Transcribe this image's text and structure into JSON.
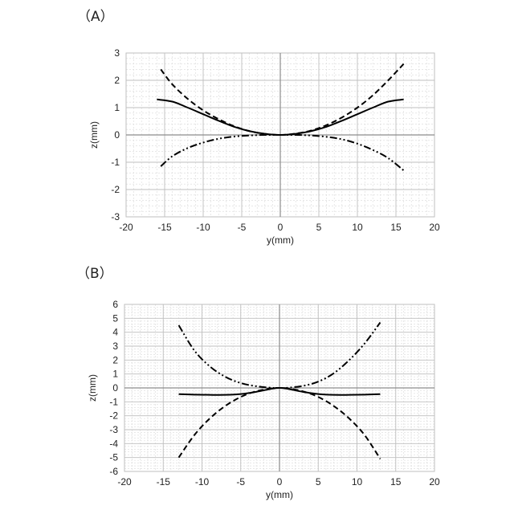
{
  "chart_data": [
    {
      "panel_label": "（A）",
      "type": "line",
      "xlabel": "y(mm)",
      "ylabel": "z(mm)",
      "xlim": [
        -20,
        20
      ],
      "ylim": [
        -3,
        3
      ],
      "xticks": [
        -20,
        -15,
        -10,
        -5,
        0,
        5,
        10,
        15,
        20
      ],
      "yticks": [
        -3,
        -2,
        -1,
        0,
        1,
        2,
        3
      ],
      "grid": "major and minor",
      "series": [
        {
          "style": "solid",
          "x": [
            -16,
            -14,
            -12,
            -10,
            -8,
            -6,
            -4,
            -2,
            0,
            2,
            4,
            6,
            8,
            10,
            12,
            14,
            16
          ],
          "y": [
            1.3,
            1.22,
            1.0,
            0.76,
            0.52,
            0.3,
            0.14,
            0.04,
            0,
            0.04,
            0.14,
            0.3,
            0.52,
            0.76,
            1.0,
            1.22,
            1.3
          ]
        },
        {
          "style": "dashed",
          "x": [
            -15.5,
            -14,
            -12,
            -10,
            -8,
            -6,
            -4,
            -2,
            0,
            2,
            4,
            6,
            8,
            10,
            12,
            14,
            16
          ],
          "y": [
            2.4,
            1.85,
            1.32,
            0.9,
            0.58,
            0.32,
            0.14,
            0.04,
            0,
            0.05,
            0.16,
            0.36,
            0.64,
            1.0,
            1.45,
            2.0,
            2.6
          ]
        },
        {
          "style": "dash-dot-dot",
          "x": [
            -15.5,
            -14,
            -12,
            -10,
            -8,
            -6,
            -4,
            -2,
            0,
            2,
            4,
            6,
            8,
            10,
            12,
            14,
            16
          ],
          "y": [
            -1.15,
            -0.78,
            -0.48,
            -0.28,
            -0.14,
            -0.06,
            -0.02,
            0,
            0,
            0,
            -0.02,
            -0.07,
            -0.16,
            -0.32,
            -0.55,
            -0.85,
            -1.3
          ]
        }
      ]
    },
    {
      "panel_label": "（B）",
      "type": "line",
      "xlabel": "y(mm)",
      "ylabel": "z(mm)",
      "xlim": [
        -20,
        20
      ],
      "ylim": [
        -6,
        6
      ],
      "xticks": [
        -20,
        -15,
        -10,
        -5,
        0,
        5,
        10,
        15,
        20
      ],
      "yticks": [
        -6,
        -5,
        -4,
        -3,
        -2,
        -1,
        0,
        1,
        2,
        3,
        4,
        5,
        6
      ],
      "grid": "major and minor",
      "series": [
        {
          "style": "solid",
          "x": [
            -13,
            -11,
            -9,
            -7,
            -5,
            -3,
            -1,
            0,
            1,
            3,
            5,
            7,
            9,
            11,
            13
          ],
          "y": [
            -0.45,
            -0.48,
            -0.5,
            -0.5,
            -0.44,
            -0.28,
            -0.06,
            0,
            -0.06,
            -0.28,
            -0.44,
            -0.5,
            -0.5,
            -0.48,
            -0.45
          ]
        },
        {
          "style": "dashed",
          "x": [
            -13,
            -11,
            -9,
            -7,
            -5,
            -3,
            -1,
            0,
            1,
            3,
            5,
            7,
            9,
            11,
            13
          ],
          "y": [
            -5.0,
            -3.4,
            -2.2,
            -1.3,
            -0.65,
            -0.24,
            -0.03,
            0,
            -0.03,
            -0.24,
            -0.65,
            -1.3,
            -2.2,
            -3.4,
            -5.1
          ]
        },
        {
          "style": "dash-dot-dot",
          "x": [
            -13,
            -11,
            -9,
            -7,
            -5,
            -3,
            -1,
            0,
            1,
            3,
            5,
            7,
            9,
            11,
            13
          ],
          "y": [
            4.5,
            2.7,
            1.55,
            0.8,
            0.35,
            0.12,
            0.01,
            0,
            0.01,
            0.14,
            0.45,
            1.05,
            2.0,
            3.2,
            4.7
          ]
        }
      ]
    }
  ]
}
